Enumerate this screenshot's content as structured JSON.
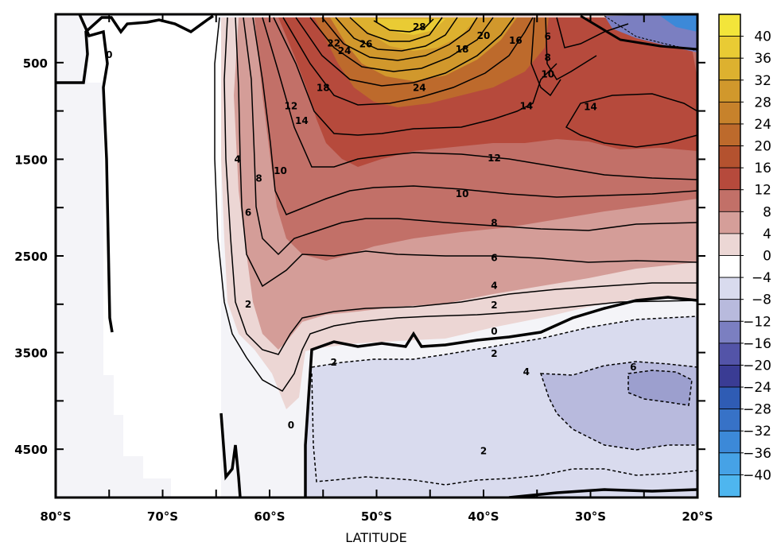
{
  "chart_data": {
    "type": "heatmap",
    "subtype": "filled-contour",
    "title": "",
    "xlabel": "LATITUDE",
    "ylabel": "",
    "x_ticks": [
      "80°S",
      "70°S",
      "60°S",
      "50°S",
      "40°S",
      "30°S",
      "20°S"
    ],
    "x_tick_values": [
      -80,
      -70,
      -60,
      -50,
      -40,
      -30,
      -20
    ],
    "y_ticks": [
      "500",
      "1500",
      "2500",
      "3500",
      "4500"
    ],
    "y_tick_values": [
      500,
      1500,
      2500,
      3500,
      4500
    ],
    "xlim": [
      -80,
      -20
    ],
    "ylim": [
      5000,
      0
    ],
    "y_inverted": true,
    "colorbar": {
      "levels": [
        40,
        36,
        32,
        28,
        24,
        20,
        16,
        12,
        8,
        4,
        0,
        -4,
        -8,
        -12,
        -16,
        -20,
        -24,
        -28,
        -32,
        -36,
        -40
      ],
      "labels": [
        "40",
        "36",
        "32",
        "28",
        "24",
        "20",
        "16",
        "12",
        "8",
        "4",
        "0",
        "−4",
        "−8",
        "−12",
        "−16",
        "−20",
        "−24",
        "−28",
        "−32",
        "−36",
        "−40"
      ],
      "colors": [
        "#f3e53a",
        "#e9cb34",
        "#ddb12f",
        "#d1982c",
        "#c7822b",
        "#bd6a2c",
        "#b4522f",
        "#b64a3c",
        "#c27068",
        "#d59e99",
        "#ecd7d5",
        "#ffffff",
        "#d9dbee",
        "#b8badd",
        "#7b7fc1",
        "#5354a8",
        "#3a3c94",
        "#2f5cb4",
        "#3772c7",
        "#3c89d8",
        "#46a2e6",
        "#4eb6ef"
      ]
    },
    "contour_labels": [
      {
        "lat": -75,
        "depth": 420,
        "value": "0"
      },
      {
        "lat": -62,
        "depth": 3000,
        "value": "2"
      },
      {
        "lat": -63,
        "depth": 1500,
        "value": "4"
      },
      {
        "lat": -62,
        "depth": 2050,
        "value": "6"
      },
      {
        "lat": -61,
        "depth": 1700,
        "value": "8"
      },
      {
        "lat": -59,
        "depth": 1620,
        "value": "10"
      },
      {
        "lat": -58,
        "depth": 950,
        "value": "12"
      },
      {
        "lat": -57,
        "depth": 1100,
        "value": "14"
      },
      {
        "lat": -55,
        "depth": 760,
        "value": "18"
      },
      {
        "lat": -54,
        "depth": 300,
        "value": "22"
      },
      {
        "lat": -53,
        "depth": 380,
        "value": "24"
      },
      {
        "lat": -51,
        "depth": 310,
        "value": "26"
      },
      {
        "lat": -46,
        "depth": 130,
        "value": "28"
      },
      {
        "lat": -46,
        "depth": 760,
        "value": "24"
      },
      {
        "lat": -42,
        "depth": 360,
        "value": "18"
      },
      {
        "lat": -40,
        "depth": 220,
        "value": "20"
      },
      {
        "lat": -37,
        "depth": 270,
        "value": "16"
      },
      {
        "lat": -34,
        "depth": 230,
        "value": "6"
      },
      {
        "lat": -34,
        "depth": 450,
        "value": "8"
      },
      {
        "lat": -34,
        "depth": 620,
        "value": "10"
      },
      {
        "lat": -36,
        "depth": 950,
        "value": "14"
      },
      {
        "lat": -30,
        "depth": 960,
        "value": "14"
      },
      {
        "lat": -39,
        "depth": 1490,
        "value": "12"
      },
      {
        "lat": -42,
        "depth": 1860,
        "value": "10"
      },
      {
        "lat": -39,
        "depth": 2160,
        "value": "8"
      },
      {
        "lat": -39,
        "depth": 2520,
        "value": "6"
      },
      {
        "lat": -39,
        "depth": 2810,
        "value": "4"
      },
      {
        "lat": -39,
        "depth": 3010,
        "value": "2"
      },
      {
        "lat": -39,
        "depth": 3280,
        "value": "0"
      },
      {
        "lat": -39,
        "depth": 3510,
        "value": "2"
      },
      {
        "lat": -36,
        "depth": 3700,
        "value": "4"
      },
      {
        "lat": -26,
        "depth": 3650,
        "value": "6"
      },
      {
        "lat": -54,
        "depth": 3600,
        "value": "2"
      },
      {
        "lat": -40,
        "depth": 4520,
        "value": "2"
      },
      {
        "lat": -58,
        "depth": 4250,
        "value": "0"
      }
    ]
  }
}
